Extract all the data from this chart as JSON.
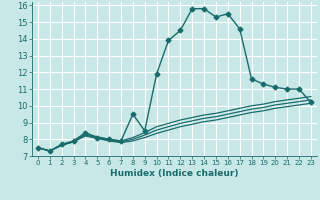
{
  "xlabel": "Humidex (Indice chaleur)",
  "bg_color": "#c8e8e8",
  "grid_color": "#ffffff",
  "line_color": "#1a6b6b",
  "xlim": [
    -0.5,
    23.5
  ],
  "ylim": [
    7,
    16.2
  ],
  "xticks": [
    0,
    1,
    2,
    3,
    4,
    5,
    6,
    7,
    8,
    9,
    10,
    11,
    12,
    13,
    14,
    15,
    16,
    17,
    18,
    19,
    20,
    21,
    22,
    23
  ],
  "yticks": [
    7,
    8,
    9,
    10,
    11,
    12,
    13,
    14,
    15,
    16
  ],
  "series": [
    {
      "x": [
        0,
        1,
        2,
        3,
        4,
        5,
        6,
        7,
        8,
        9,
        10,
        11,
        12,
        13,
        14,
        15,
        16,
        17,
        18,
        19,
        20,
        21,
        22,
        23
      ],
      "y": [
        7.5,
        7.3,
        7.7,
        7.9,
        8.4,
        8.1,
        8.0,
        7.9,
        9.5,
        8.5,
        11.9,
        13.9,
        14.5,
        15.8,
        15.8,
        15.3,
        15.5,
        14.6,
        11.6,
        11.3,
        11.1,
        11.0,
        11.0,
        10.2
      ],
      "marker": "D",
      "markersize": 2.5,
      "linewidth": 1.0
    },
    {
      "x": [
        0,
        1,
        2,
        3,
        4,
        5,
        6,
        7,
        8,
        9,
        10,
        11,
        12,
        13,
        14,
        15,
        16,
        17,
        18,
        19,
        20,
        21,
        22,
        23
      ],
      "y": [
        7.5,
        7.3,
        7.65,
        7.85,
        8.2,
        8.05,
        7.9,
        7.8,
        7.9,
        8.1,
        8.35,
        8.55,
        8.75,
        8.9,
        9.05,
        9.15,
        9.3,
        9.45,
        9.6,
        9.7,
        9.85,
        9.95,
        10.05,
        10.15
      ],
      "marker": null,
      "markersize": 0,
      "linewidth": 0.9
    },
    {
      "x": [
        0,
        1,
        2,
        3,
        4,
        5,
        6,
        7,
        8,
        9,
        10,
        11,
        12,
        13,
        14,
        15,
        16,
        17,
        18,
        19,
        20,
        21,
        22,
        23
      ],
      "y": [
        7.5,
        7.3,
        7.65,
        7.85,
        8.25,
        8.1,
        7.95,
        7.85,
        8.0,
        8.25,
        8.55,
        8.75,
        8.95,
        9.1,
        9.25,
        9.35,
        9.5,
        9.65,
        9.8,
        9.9,
        10.05,
        10.15,
        10.25,
        10.35
      ],
      "marker": null,
      "markersize": 0,
      "linewidth": 0.9
    },
    {
      "x": [
        0,
        1,
        2,
        3,
        4,
        5,
        6,
        7,
        8,
        9,
        10,
        11,
        12,
        13,
        14,
        15,
        16,
        17,
        18,
        19,
        20,
        21,
        22,
        23
      ],
      "y": [
        7.5,
        7.3,
        7.65,
        7.85,
        8.3,
        8.15,
        8.0,
        7.9,
        8.1,
        8.4,
        8.75,
        8.95,
        9.15,
        9.3,
        9.45,
        9.55,
        9.7,
        9.85,
        10.0,
        10.1,
        10.25,
        10.35,
        10.45,
        10.55
      ],
      "marker": null,
      "markersize": 0,
      "linewidth": 0.9
    }
  ]
}
